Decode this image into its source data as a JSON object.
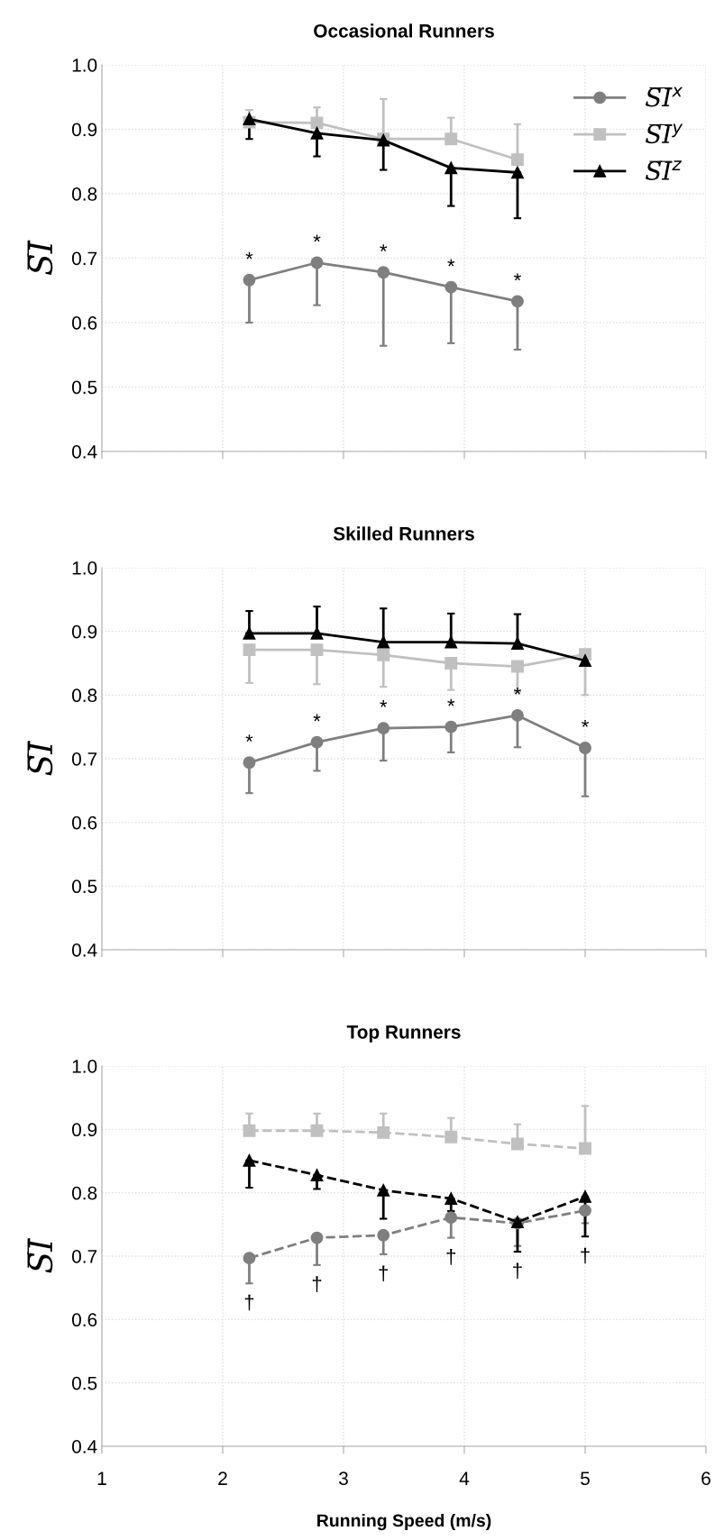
{
  "chart_data": [
    {
      "type": "line",
      "title": "Occasional Runners",
      "ylabel": "S̅I̅",
      "x": [
        2.22,
        2.78,
        3.33,
        3.89,
        4.44
      ],
      "xlim": [
        1,
        6
      ],
      "xticks": [
        1,
        2,
        3,
        4,
        5,
        6
      ],
      "ylim": [
        0.4,
        1.0
      ],
      "yticks": [
        {
          "value": 0.4,
          "label": "0.4"
        },
        {
          "value": 0.5,
          "label": "0.5"
        },
        {
          "value": 0.6,
          "label": "0.6"
        },
        {
          "value": 0.7,
          "label": "0.7"
        },
        {
          "value": 0.8,
          "label": "0.8"
        },
        {
          "value": 0.9,
          "label": "0.9"
        },
        {
          "value": 1.0,
          "label": "1.0"
        }
      ],
      "tick_labels": "y",
      "grid": true,
      "legend": "top right",
      "line_style": "solid",
      "series": [
        {
          "name": "S̅I̅$^{x}$",
          "color": "#7f7f7f",
          "marker": "circle",
          "values": [
            0.666,
            0.693,
            0.678,
            0.655,
            0.633
          ],
          "errors": [
            [
              0.6,
              0.666
            ],
            [
              0.627,
              0.693
            ],
            [
              0.564,
              0.678
            ],
            [
              0.568,
              0.655
            ],
            [
              0.558,
              0.633
            ]
          ]
        },
        {
          "name": "S̅I̅$^{y}$",
          "color": "#c0c0c0",
          "marker": "square",
          "values": [
            0.911,
            0.91,
            0.885,
            0.885,
            0.853
          ],
          "errors": [
            [
              0.911,
              0.93
            ],
            [
              0.91,
              0.934
            ],
            [
              0.885,
              0.947
            ],
            [
              0.885,
              0.918
            ],
            [
              0.853,
              0.908
            ]
          ]
        },
        {
          "name": "S̅I̅$^{z}$",
          "color": "#000000",
          "marker": "triangle",
          "values": [
            0.916,
            0.894,
            0.883,
            0.84,
            0.833
          ],
          "errors": [
            [
              0.885,
              0.916
            ],
            [
              0.858,
              0.894
            ],
            [
              0.837,
              0.883
            ],
            [
              0.781,
              0.84
            ],
            [
              0.762,
              0.833
            ]
          ]
        }
      ],
      "annotations": [
        {
          "text": "*",
          "x": 2.22,
          "y": 0.666
        },
        {
          "text": "*",
          "x": 2.78,
          "y": 0.693
        },
        {
          "text": "*",
          "x": 3.33,
          "y": 0.678
        },
        {
          "text": "*",
          "x": 3.89,
          "y": 0.655
        },
        {
          "text": "*",
          "x": 4.44,
          "y": 0.633
        }
      ]
    },
    {
      "type": "line",
      "title": "Skilled Runners",
      "ylabel": "S̅I̅",
      "x": [
        2.22,
        2.78,
        3.33,
        3.89,
        4.44,
        5.0
      ],
      "xlim": [
        1,
        6
      ],
      "xticks": [
        1,
        2,
        3,
        4,
        5,
        6
      ],
      "ylim": [
        0.4,
        1.0
      ],
      "yticks": [
        {
          "value": 0.4,
          "label": "0.4"
        },
        {
          "value": 0.5,
          "label": "0.5"
        },
        {
          "value": 0.6,
          "label": "0.6"
        },
        {
          "value": 0.7,
          "label": "0.7"
        },
        {
          "value": 0.8,
          "label": "0.8"
        },
        {
          "value": 0.9,
          "label": "0.9"
        },
        {
          "value": 1.0,
          "label": "1.0"
        }
      ],
      "tick_labels": "y",
      "grid": true,
      "line_style": "solid",
      "series": [
        {
          "color": "#7f7f7f",
          "marker": "circle",
          "values": [
            0.694,
            0.726,
            0.748,
            0.75,
            0.768,
            0.717
          ],
          "errors": [
            [
              0.646,
              0.694
            ],
            [
              0.681,
              0.726
            ],
            [
              0.697,
              0.748
            ],
            [
              0.71,
              0.75
            ],
            [
              0.718,
              0.768
            ],
            [
              0.641,
              0.717
            ]
          ]
        },
        {
          "color": "#c0c0c0",
          "marker": "square",
          "values": [
            0.871,
            0.871,
            0.863,
            0.85,
            0.845,
            0.864
          ],
          "errors": [
            [
              0.819,
              0.871
            ],
            [
              0.817,
              0.871
            ],
            [
              0.813,
              0.863
            ],
            [
              0.808,
              0.85
            ],
            [
              0.805,
              0.845
            ],
            [
              0.8,
              0.864
            ]
          ]
        },
        {
          "color": "#000000",
          "marker": "triangle",
          "values": [
            0.897,
            0.897,
            0.883,
            0.883,
            0.881,
            0.854
          ],
          "errors": [
            [
              0.897,
              0.932
            ],
            [
              0.897,
              0.939
            ],
            [
              0.883,
              0.936
            ],
            [
              0.883,
              0.928
            ],
            [
              0.881,
              0.927
            ],
            null
          ]
        }
      ],
      "annotations": [
        {
          "text": "*",
          "x": 2.22,
          "y": 0.694
        },
        {
          "text": "*",
          "x": 2.78,
          "y": 0.726
        },
        {
          "text": "*",
          "x": 3.33,
          "y": 0.748
        },
        {
          "text": "*",
          "x": 3.89,
          "y": 0.75
        },
        {
          "text": "*",
          "x": 4.44,
          "y": 0.768
        },
        {
          "text": "*",
          "x": 5.0,
          "y": 0.717
        }
      ]
    },
    {
      "type": "line",
      "title": "Top Runners",
      "ylabel": "S̅I̅",
      "xlabel": "Running Speed (m/s)",
      "x": [
        2.22,
        2.78,
        3.33,
        3.89,
        4.44,
        5.0
      ],
      "xlim": [
        1,
        6
      ],
      "xticks": [
        1,
        2,
        3,
        4,
        5,
        6
      ],
      "ylim": [
        0.4,
        1.0
      ],
      "yticks": [
        {
          "value": 0.4,
          "label": "0.4"
        },
        {
          "value": 0.5,
          "label": "0.5"
        },
        {
          "value": 0.6,
          "label": "0.6"
        },
        {
          "value": 0.7,
          "label": "0.7"
        },
        {
          "value": 0.8,
          "label": "0.8"
        },
        {
          "value": 0.9,
          "label": "0.9"
        },
        {
          "value": 1.0,
          "label": "1.0"
        }
      ],
      "grid": true,
      "line_style": "dashed",
      "series": [
        {
          "color": "#7f7f7f",
          "marker": "circle",
          "values": [
            0.697,
            0.729,
            0.733,
            0.761,
            0.752,
            0.772
          ],
          "errors": [
            [
              0.657,
              0.697
            ],
            [
              0.686,
              0.729
            ],
            [
              0.703,
              0.733
            ],
            [
              0.729,
              0.761
            ],
            [
              0.716,
              0.752
            ],
            [
              0.752,
              0.772
            ]
          ]
        },
        {
          "color": "#c0c0c0",
          "marker": "square",
          "values": [
            0.898,
            0.898,
            0.895,
            0.888,
            0.877,
            0.87
          ],
          "errors": [
            [
              0.898,
              0.925
            ],
            [
              0.898,
              0.925
            ],
            [
              0.895,
              0.925
            ],
            [
              0.888,
              0.918
            ],
            [
              0.877,
              0.908
            ],
            [
              0.87,
              0.937
            ]
          ]
        },
        {
          "color": "#000000",
          "marker": "triangle",
          "values": [
            0.851,
            0.828,
            0.804,
            0.791,
            0.754,
            0.794
          ],
          "errors": [
            [
              0.808,
              0.851
            ],
            [
              0.806,
              0.828
            ],
            [
              0.759,
              0.804
            ],
            [
              0.771,
              0.791
            ],
            [
              0.707,
              0.754
            ],
            [
              0.731,
              0.794
            ]
          ]
        }
      ],
      "annotations": [
        {
          "text": "†",
          "x": 2.22,
          "y": 0.657
        },
        {
          "text": "†",
          "x": 2.78,
          "y": 0.686
        },
        {
          "text": "†",
          "x": 3.33,
          "y": 0.703
        },
        {
          "text": "†",
          "x": 3.89,
          "y": 0.729
        },
        {
          "text": "†",
          "x": 4.44,
          "y": 0.707
        },
        {
          "text": "†",
          "x": 5.0,
          "y": 0.731
        }
      ]
    }
  ]
}
